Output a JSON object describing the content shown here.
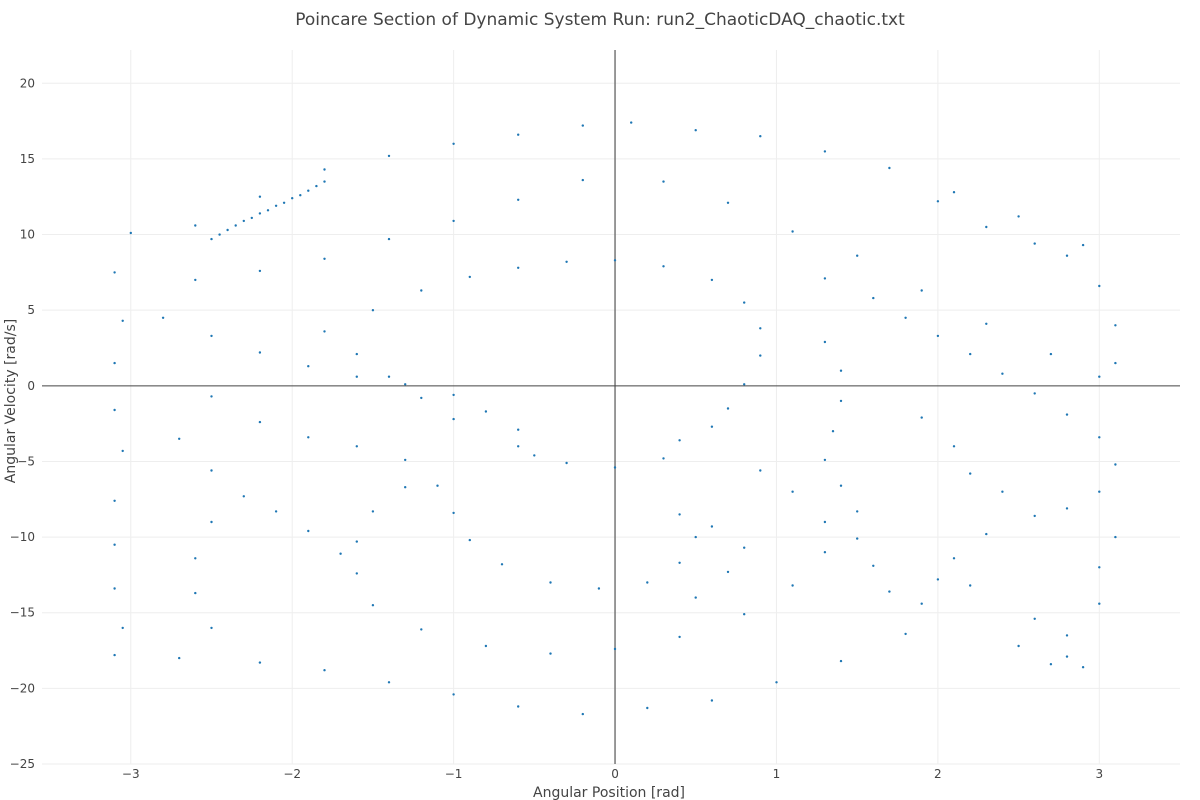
{
  "chart_data": {
    "type": "scatter",
    "title": "Poincare Section of Dynamic System Run: run2_ChaoticDAQ_chaotic.txt",
    "xlabel": "Angular Position [rad]",
    "ylabel": "Angular Velocity [rad/s]",
    "xlim": [
      -3.55,
      3.5
    ],
    "ylim": [
      -25,
      22.2
    ],
    "x_ticks": [
      -3,
      -2,
      -1,
      0,
      1,
      2,
      3
    ],
    "y_ticks": [
      -25,
      -20,
      -15,
      -10,
      -5,
      0,
      5,
      10,
      15,
      20
    ],
    "x_tick_labels": [
      "−3",
      "−2",
      "−1",
      "0",
      "1",
      "2",
      "3"
    ],
    "y_tick_labels": [
      "−25",
      "−20",
      "−15",
      "−10",
      "−5",
      "0",
      "5",
      "10",
      "15",
      "20"
    ],
    "grid": true,
    "zero_lines": true,
    "legend": "none",
    "marker_color": "#1f77b4",
    "marker_size": 2,
    "series": [
      {
        "values": [
          [
            -2.35,
            10.6
          ],
          [
            -2.3,
            10.9
          ],
          [
            -2.25,
            11.1
          ],
          [
            -2.2,
            11.4
          ],
          [
            -2.15,
            11.6
          ],
          [
            -2.1,
            11.9
          ],
          [
            -2.05,
            12.1
          ],
          [
            -2.0,
            12.4
          ],
          [
            -1.95,
            12.6
          ],
          [
            -1.9,
            12.9
          ],
          [
            -1.85,
            13.2
          ],
          [
            -1.8,
            13.5
          ],
          [
            -2.4,
            10.3
          ],
          [
            -2.45,
            10.0
          ],
          [
            -2.5,
            9.7
          ],
          [
            -2.2,
            12.5
          ],
          [
            -1.8,
            14.3
          ],
          [
            -1.4,
            15.2
          ],
          [
            -1.0,
            16.0
          ],
          [
            -0.6,
            16.6
          ],
          [
            -0.2,
            17.2
          ],
          [
            0.1,
            17.4
          ],
          [
            0.5,
            16.9
          ],
          [
            0.9,
            16.5
          ],
          [
            1.3,
            15.5
          ],
          [
            1.7,
            14.4
          ],
          [
            2.1,
            12.8
          ],
          [
            2.5,
            11.2
          ],
          [
            2.9,
            9.3
          ],
          [
            -2.6,
            10.6
          ],
          [
            -3.0,
            10.1
          ],
          [
            -3.1,
            7.5
          ],
          [
            -3.05,
            4.3
          ],
          [
            -3.1,
            1.5
          ],
          [
            -3.1,
            -1.6
          ],
          [
            -3.05,
            -4.3
          ],
          [
            -3.1,
            -7.6
          ],
          [
            -3.1,
            -10.5
          ],
          [
            -3.1,
            -13.4
          ],
          [
            -3.05,
            -16.0
          ],
          [
            -3.1,
            -17.8
          ],
          [
            -2.7,
            -18.0
          ],
          [
            -2.2,
            -18.3
          ],
          [
            -1.8,
            -18.8
          ],
          [
            -1.4,
            -19.6
          ],
          [
            -1.0,
            -20.4
          ],
          [
            -0.6,
            -21.2
          ],
          [
            -0.2,
            -21.7
          ],
          [
            0.2,
            -21.3
          ],
          [
            0.6,
            -20.8
          ],
          [
            1.0,
            -19.6
          ],
          [
            1.4,
            -18.2
          ],
          [
            1.8,
            -16.4
          ],
          [
            2.2,
            -13.2
          ],
          [
            -2.6,
            7.0
          ],
          [
            -2.2,
            7.6
          ],
          [
            -1.8,
            8.4
          ],
          [
            -1.4,
            9.7
          ],
          [
            -1.0,
            10.9
          ],
          [
            -0.6,
            12.3
          ],
          [
            -0.2,
            13.6
          ],
          [
            0.3,
            13.5
          ],
          [
            0.7,
            12.1
          ],
          [
            1.1,
            10.2
          ],
          [
            1.5,
            8.6
          ],
          [
            1.9,
            6.3
          ],
          [
            2.3,
            4.1
          ],
          [
            2.7,
            2.1
          ],
          [
            3.0,
            0.6
          ],
          [
            -2.8,
            4.5
          ],
          [
            -2.5,
            3.3
          ],
          [
            -2.2,
            2.2
          ],
          [
            -1.9,
            1.3
          ],
          [
            -1.6,
            0.6
          ],
          [
            -1.3,
            0.1
          ],
          [
            -1.0,
            -0.6
          ],
          [
            -0.8,
            -1.7
          ],
          [
            -0.6,
            -2.9
          ],
          [
            -0.5,
            -4.6
          ],
          [
            -2.5,
            -0.7
          ],
          [
            -2.2,
            -2.4
          ],
          [
            -1.9,
            -3.4
          ],
          [
            -1.6,
            -4.0
          ],
          [
            -1.3,
            -4.9
          ],
          [
            -1.1,
            -6.6
          ],
          [
            -1.0,
            -8.4
          ],
          [
            -2.7,
            -3.5
          ],
          [
            -2.5,
            -5.6
          ],
          [
            -2.3,
            -7.3
          ],
          [
            -2.1,
            -8.3
          ],
          [
            -1.9,
            -9.6
          ],
          [
            -1.7,
            -11.1
          ],
          [
            -2.5,
            -9.0
          ],
          [
            -2.6,
            -11.4
          ],
          [
            -2.6,
            -13.7
          ],
          [
            -2.5,
            -16.0
          ],
          [
            -1.5,
            5.0
          ],
          [
            -1.2,
            6.3
          ],
          [
            -0.9,
            7.2
          ],
          [
            -0.6,
            7.8
          ],
          [
            -0.3,
            8.2
          ],
          [
            0.0,
            8.3
          ],
          [
            0.3,
            7.9
          ],
          [
            0.6,
            7.0
          ],
          [
            0.8,
            5.5
          ],
          [
            0.9,
            3.8
          ],
          [
            0.9,
            2.0
          ],
          [
            0.8,
            0.1
          ],
          [
            0.7,
            -1.5
          ],
          [
            0.6,
            -2.7
          ],
          [
            -1.8,
            3.6
          ],
          [
            -1.6,
            2.1
          ],
          [
            -1.4,
            0.6
          ],
          [
            -1.2,
            -0.8
          ],
          [
            -1.0,
            -2.2
          ],
          [
            -0.6,
            -4.0
          ],
          [
            -0.3,
            -5.1
          ],
          [
            0.0,
            -5.4
          ],
          [
            0.3,
            -4.8
          ],
          [
            0.4,
            -3.6
          ],
          [
            -1.3,
            -6.7
          ],
          [
            -1.5,
            -8.3
          ],
          [
            -1.6,
            -10.3
          ],
          [
            -1.6,
            -12.4
          ],
          [
            -1.5,
            -14.5
          ],
          [
            -1.2,
            -16.1
          ],
          [
            -0.8,
            -17.2
          ],
          [
            -0.4,
            -17.7
          ],
          [
            0.0,
            -17.4
          ],
          [
            0.4,
            -16.6
          ],
          [
            0.8,
            -15.1
          ],
          [
            1.1,
            -13.2
          ],
          [
            1.3,
            -11.0
          ],
          [
            1.3,
            -9.0
          ],
          [
            1.1,
            -7.0
          ],
          [
            0.9,
            -5.6
          ],
          [
            -0.9,
            -10.2
          ],
          [
            -0.7,
            -11.8
          ],
          [
            -0.4,
            -13.0
          ],
          [
            -0.1,
            -13.4
          ],
          [
            0.2,
            -13.0
          ],
          [
            0.4,
            -11.7
          ],
          [
            0.5,
            -10.0
          ],
          [
            0.4,
            -8.5
          ],
          [
            0.6,
            -9.3
          ],
          [
            0.7,
            -12.3
          ],
          [
            0.5,
            -14.0
          ],
          [
            0.8,
            -10.7
          ],
          [
            1.3,
            7.1
          ],
          [
            1.6,
            5.8
          ],
          [
            1.8,
            4.5
          ],
          [
            2.0,
            3.3
          ],
          [
            2.2,
            2.1
          ],
          [
            2.4,
            0.8
          ],
          [
            2.6,
            -0.5
          ],
          [
            2.8,
            -1.9
          ],
          [
            3.0,
            -3.4
          ],
          [
            3.1,
            -5.2
          ],
          [
            3.0,
            -7.0
          ],
          [
            2.8,
            -8.1
          ],
          [
            1.3,
            2.9
          ],
          [
            1.4,
            1.0
          ],
          [
            1.4,
            -1.0
          ],
          [
            1.35,
            -3.0
          ],
          [
            1.3,
            -4.9
          ],
          [
            1.4,
            -6.6
          ],
          [
            1.5,
            -8.3
          ],
          [
            1.5,
            -10.1
          ],
          [
            1.6,
            -11.9
          ],
          [
            1.7,
            -13.6
          ],
          [
            1.9,
            -2.1
          ],
          [
            2.1,
            -4.0
          ],
          [
            2.2,
            -5.8
          ],
          [
            2.4,
            -7.0
          ],
          [
            2.6,
            -8.6
          ],
          [
            2.3,
            -9.8
          ],
          [
            2.1,
            -11.4
          ],
          [
            2.0,
            -12.8
          ],
          [
            1.9,
            -14.4
          ],
          [
            2.6,
            -15.4
          ],
          [
            2.5,
            -17.2
          ],
          [
            2.7,
            -18.4
          ],
          [
            2.8,
            -16.5
          ],
          [
            3.0,
            -14.4
          ],
          [
            3.0,
            -12.0
          ],
          [
            3.1,
            -10.0
          ],
          [
            2.9,
            -18.6
          ],
          [
            2.8,
            -17.9
          ],
          [
            3.0,
            6.6
          ],
          [
            3.1,
            4.0
          ],
          [
            3.1,
            1.5
          ],
          [
            2.8,
            8.6
          ],
          [
            2.6,
            9.4
          ],
          [
            2.3,
            10.5
          ],
          [
            2.0,
            12.2
          ]
        ]
      }
    ]
  }
}
